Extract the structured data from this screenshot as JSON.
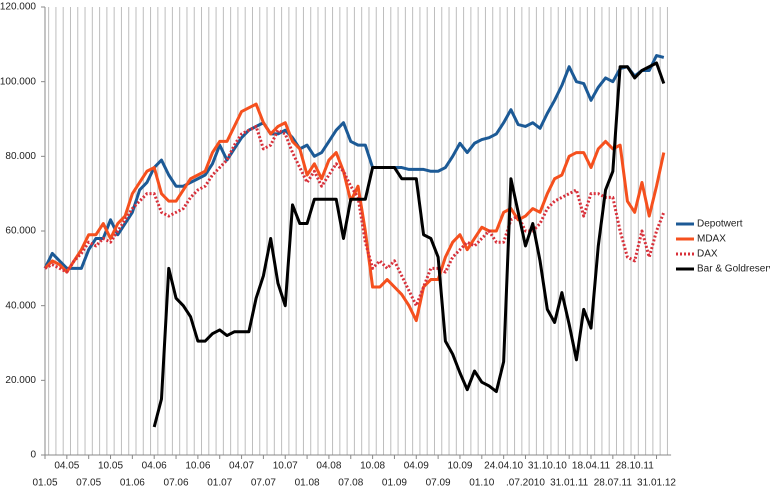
{
  "chart_data": {
    "type": "line",
    "categories": [
      "01.05",
      null,
      null,
      "04.05",
      null,
      null,
      "07.05",
      null,
      null,
      "10.05",
      null,
      null,
      "01.06",
      null,
      null,
      "04.06",
      null,
      null,
      "07.06",
      null,
      null,
      "10.06",
      null,
      null,
      "01.07",
      null,
      null,
      "04.07",
      null,
      null,
      "07.07",
      null,
      null,
      "10.07",
      null,
      null,
      "01.08",
      null,
      null,
      "04.08",
      null,
      null,
      "07.08",
      null,
      null,
      "10.08",
      null,
      null,
      "01.09",
      null,
      null,
      "04.09",
      null,
      null,
      "07.09",
      null,
      null,
      "10.09",
      null,
      null,
      "01.10",
      null,
      null,
      "24.04.10",
      null,
      null,
      ".07.2010",
      null,
      null,
      "31.10.10",
      null,
      null,
      "31.01.11",
      null,
      null,
      "18.04.11",
      null,
      null,
      "28.07.11",
      null,
      null,
      "28.10.11",
      null,
      null,
      "31.01.12",
      null
    ],
    "series": [
      {
        "name": "Depotwert",
        "color": "#1c5a96",
        "dashed": false,
        "values": [
          50000,
          54000,
          52000,
          50000,
          50000,
          50000,
          55000,
          58000,
          58000,
          63000,
          59000,
          62000,
          65000,
          71000,
          73000,
          77000,
          79000,
          75000,
          72000,
          72000,
          73000,
          74000,
          75000,
          78000,
          83000,
          79000,
          82000,
          85000,
          87000,
          88000,
          89000,
          86000,
          86000,
          87000,
          85000,
          82000,
          83000,
          80000,
          81000,
          84000,
          87000,
          89000,
          84000,
          83000,
          83000,
          77000,
          77000,
          77000,
          77000,
          77000,
          76500,
          76500,
          76500,
          76000,
          76000,
          77000,
          80000,
          83500,
          81000,
          83500,
          84500,
          85000,
          86000,
          89000,
          92500,
          88500,
          88000,
          89000,
          87500,
          91500,
          95000,
          99000,
          104000,
          100000,
          99500,
          95000,
          98500,
          101000,
          100000,
          103500,
          104000,
          101500,
          103000,
          103000,
          107000,
          106500
        ]
      },
      {
        "name": "MDAX",
        "color": "#f5501e",
        "dashed": false,
        "values": [
          50000,
          52000,
          51000,
          49000,
          52000,
          55000,
          59000,
          59000,
          62000,
          58000,
          62000,
          64000,
          70000,
          73000,
          76000,
          77000,
          70000,
          68000,
          68000,
          71000,
          74000,
          75000,
          76000,
          81000,
          84000,
          84000,
          88000,
          92000,
          93000,
          94000,
          89000,
          86000,
          88000,
          89000,
          84000,
          82000,
          75000,
          78000,
          74000,
          79000,
          81000,
          76000,
          68000,
          72000,
          60000,
          45000,
          45000,
          47000,
          45000,
          43000,
          40000,
          36000,
          45000,
          47000,
          47000,
          53000,
          57000,
          59000,
          55000,
          58000,
          61000,
          60000,
          60000,
          65000,
          66000,
          63000,
          64000,
          66000,
          65000,
          70000,
          74000,
          75000,
          80000,
          81000,
          81000,
          77000,
          82000,
          84000,
          82000,
          83000,
          68000,
          65000,
          73000,
          64000,
          72000,
          81000
        ]
      },
      {
        "name": "DAX",
        "color": "#d8303a",
        "dashed": true,
        "values": [
          50000,
          51000,
          50000,
          49000,
          52000,
          54000,
          57000,
          56000,
          58000,
          57000,
          60000,
          63000,
          66000,
          68000,
          70000,
          70000,
          65000,
          64000,
          65000,
          66000,
          69000,
          71000,
          72000,
          75000,
          77000,
          79000,
          83000,
          86000,
          87000,
          88000,
          82000,
          83000,
          87000,
          86000,
          81000,
          77000,
          73000,
          76000,
          72000,
          75000,
          78000,
          76000,
          72000,
          69000,
          57000,
          50000,
          52000,
          50000,
          52000,
          48000,
          44000,
          40000,
          45000,
          50000,
          50000,
          49000,
          53000,
          55000,
          57000,
          56000,
          58000,
          60000,
          57000,
          57000,
          63000,
          64000,
          60000,
          60000,
          62000,
          66000,
          68000,
          69000,
          70000,
          71000,
          64000,
          70000,
          70000,
          69000,
          69000,
          60000,
          53000,
          52000,
          60000,
          53000,
          60000,
          65000
        ]
      },
      {
        "name": "Bar & Goldreserven",
        "color": "#000000",
        "dashed": false,
        "values": [
          null,
          null,
          null,
          null,
          null,
          null,
          null,
          null,
          null,
          null,
          null,
          null,
          null,
          null,
          null,
          7500,
          15000,
          50000,
          42000,
          40000,
          37000,
          30500,
          30500,
          32500,
          33500,
          32000,
          33000,
          33000,
          33000,
          42000,
          48000,
          58000,
          46000,
          40000,
          67000,
          62000,
          62000,
          68500,
          68500,
          68500,
          68500,
          58000,
          68500,
          68500,
          68500,
          77000,
          77000,
          77000,
          77000,
          74000,
          74000,
          74000,
          59000,
          58000,
          53000,
          30500,
          27000,
          22000,
          17500,
          22500,
          19500,
          18500,
          17000,
          25000,
          74000,
          65000,
          56000,
          62000,
          52000,
          39000,
          35500,
          43500,
          35000,
          25500,
          39000,
          34000,
          56000,
          71000,
          76000,
          104000,
          104000,
          101000,
          103000,
          104000,
          105000,
          99500
        ]
      }
    ],
    "ylim": [
      0,
      120000
    ],
    "yticks": [
      0,
      {
        "value": 20000,
        "label": "20.000"
      },
      {
        "value": 40000,
        "label": "40.000"
      },
      {
        "value": 60000,
        "label": "60.000"
      },
      {
        "value": 80000,
        "label": "80.000"
      },
      {
        "value": 100000,
        "label": "100.000"
      },
      {
        "value": 120000,
        "label": "120.000"
      }
    ],
    "grid": true,
    "legend": "right"
  }
}
